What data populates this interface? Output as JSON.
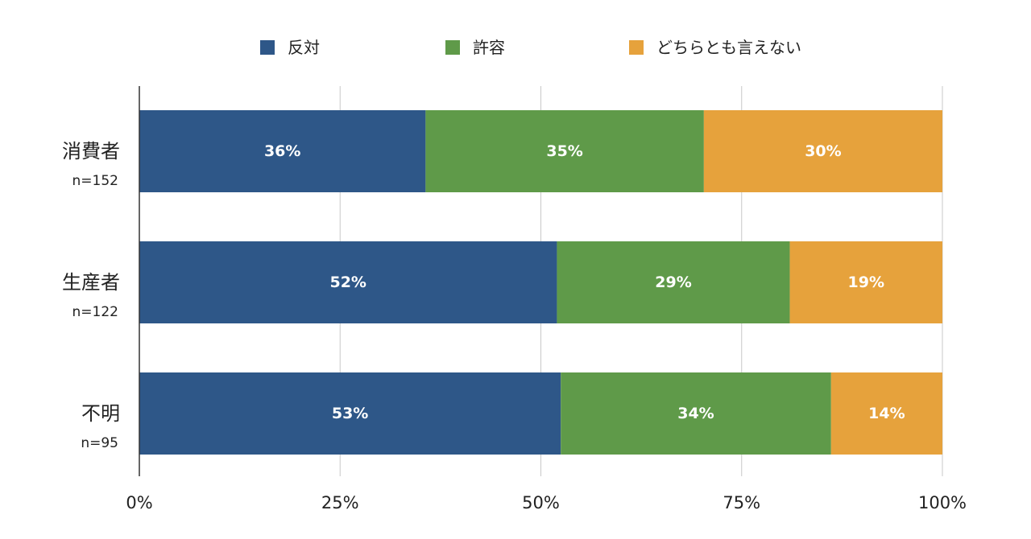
{
  "chart_data": {
    "type": "bar",
    "orientation": "horizontal",
    "stacked": true,
    "categories": [
      "消費者",
      "生産者",
      "不明"
    ],
    "category_sublabels": [
      "n=152",
      "n=122",
      "n=95"
    ],
    "series": [
      {
        "name": "反対",
        "color": "#2e5788",
        "values": [
          36,
          52,
          53
        ],
        "labels": [
          "36%",
          "52%",
          "53%"
        ]
      },
      {
        "name": "許容",
        "color": "#5f9a49",
        "values": [
          35,
          29,
          34
        ],
        "labels": [
          "35%",
          "29%",
          "34%"
        ]
      },
      {
        "name": "どちらとも言えない",
        "color": "#e6a23c",
        "values": [
          30,
          19,
          14
        ],
        "labels": [
          "30%",
          "19%",
          "14%"
        ]
      }
    ],
    "xlim": [
      0,
      100
    ],
    "xticks": [
      0,
      25,
      50,
      75,
      100
    ],
    "xtick_labels": [
      "0%",
      "25%",
      "50%",
      "75%",
      "100%"
    ],
    "grid": true,
    "legend_position": "top"
  }
}
